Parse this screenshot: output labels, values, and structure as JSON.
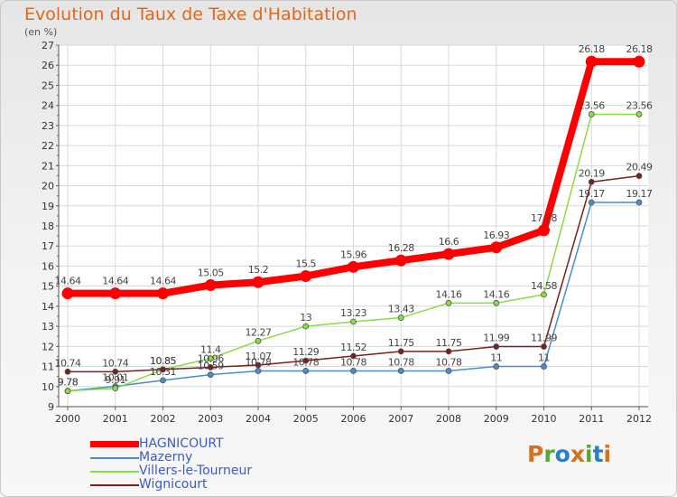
{
  "header": {
    "title": "Evolution du Taux de Taxe d'Habitation",
    "unit": "(en %)"
  },
  "logo_text": [
    "P",
    "r",
    "o",
    "x",
    "i",
    "t",
    "i"
  ],
  "logo_colors": [
    "#d7701e",
    "#5aa43a",
    "#2a7dc8",
    "#d7701e",
    "#5aa43a",
    "#2a7dc8",
    "#d7701e"
  ],
  "chart_data": {
    "type": "line",
    "x": [
      "2000",
      "2001",
      "2002",
      "2003",
      "2004",
      "2005",
      "2006",
      "2007",
      "2008",
      "2009",
      "2010",
      "2011",
      "2012"
    ],
    "ylim": [
      9,
      27
    ],
    "yticks": [
      "9",
      "10",
      "11",
      "12",
      "13",
      "14",
      "15",
      "16",
      "17",
      "18",
      "19",
      "20",
      "21",
      "22",
      "23",
      "24",
      "25",
      "26",
      "27"
    ],
    "grid": true,
    "series": [
      {
        "name": "HAGNICOURT",
        "color": "#ff0000",
        "values": [
          14.64,
          14.64,
          14.64,
          15.05,
          15.2,
          15.5,
          15.96,
          16.28,
          16.6,
          16.93,
          17.78,
          26.18,
          26.18
        ],
        "labels": [
          "14.64",
          "14.64",
          "14.64",
          "15.05",
          "15.2",
          "15.5",
          "15.96",
          "16.28",
          "16.6",
          "16.93",
          "17.78",
          "26.18",
          "26.18"
        ]
      },
      {
        "name": "Mazerny",
        "color": "#4a8ccc",
        "values": [
          9.78,
          10.01,
          10.31,
          10.59,
          10.78,
          10.78,
          10.78,
          10.78,
          10.78,
          11,
          11,
          19.17,
          19.17
        ],
        "labels": [
          "9.78",
          "10.01",
          "10.31",
          "10.59",
          "10.78",
          "10.78",
          "10.78",
          "10.78",
          "10.78",
          "11",
          "11",
          "19.17",
          "19.17"
        ]
      },
      {
        "name": "Villers-le-Tourneur",
        "color": "#88dd44",
        "values": [
          9.78,
          9.91,
          10.85,
          11.4,
          12.27,
          13,
          13.23,
          13.43,
          14.16,
          14.16,
          14.58,
          23.56,
          23.56
        ],
        "labels": [
          "9.78",
          "9.91",
          "10.85",
          "11.4",
          "12.27",
          "13",
          "13.23",
          "13.43",
          "14.16",
          "14.16",
          "14.58",
          "23.56",
          "23.56"
        ]
      },
      {
        "name": "Wignicourt",
        "color": "#7a1e1e",
        "values": [
          10.74,
          10.74,
          10.85,
          10.96,
          11.07,
          11.29,
          11.52,
          11.75,
          11.75,
          11.99,
          11.99,
          20.19,
          20.49
        ],
        "labels": [
          "10.74",
          "10.74",
          "10.85",
          "10.96",
          "11.07",
          "11.29",
          "11.52",
          "11.75",
          "11.75",
          "11.99",
          "11.99",
          "20.19",
          "20.49"
        ]
      }
    ],
    "legend_position": "bottom-left"
  }
}
